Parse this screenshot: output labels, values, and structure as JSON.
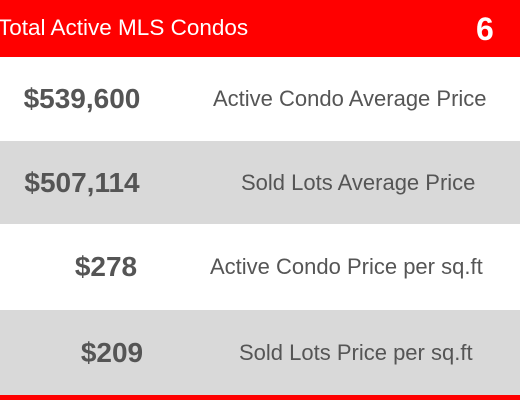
{
  "header": {
    "title": "Total Active MLS Condos",
    "count": "6"
  },
  "rows": [
    {
      "value": "$539,600",
      "label": "Active Condo Average Price"
    },
    {
      "value": "$507,114",
      "label": "Sold Lots Average Price"
    },
    {
      "value": "$278",
      "label": "Active Condo Price per sq.ft"
    },
    {
      "value": "$209",
      "label": "Sold Lots Price per sq.ft"
    }
  ],
  "colors": {
    "header_bg": "#ff0000",
    "header_text": "#ffffff",
    "row_alt_bg": "#d9d9d9",
    "text": "#555555"
  }
}
